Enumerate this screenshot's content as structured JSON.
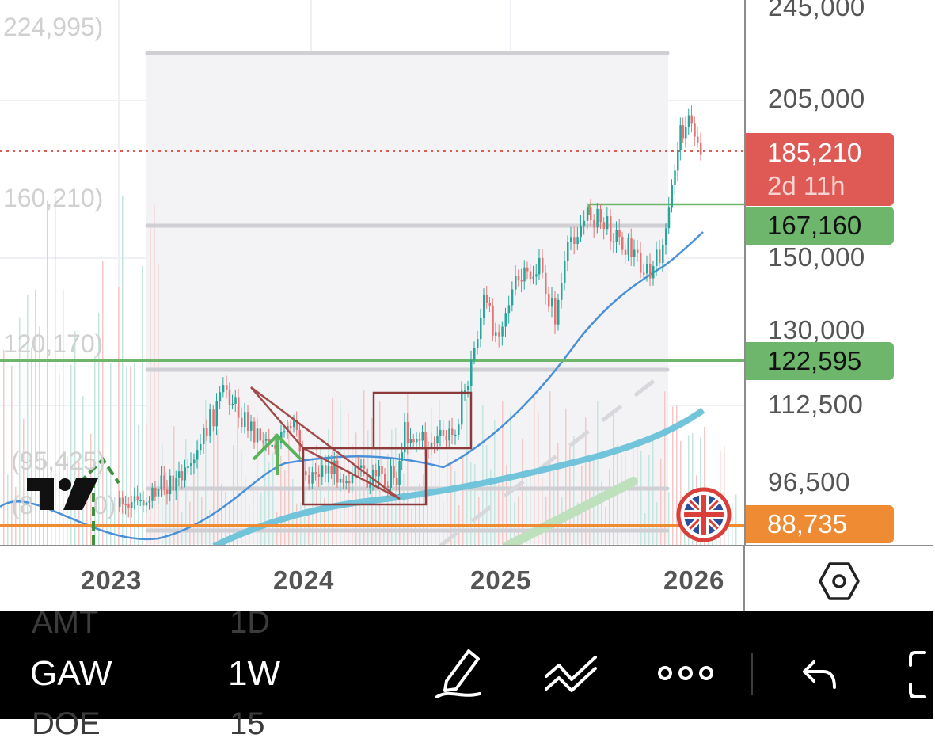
{
  "chart": {
    "left_watermark_values": [
      "224,995)",
      "160,210)",
      "120,170)",
      "(95,425)",
      "(8",
      "0)"
    ],
    "price_axis": {
      "ticks": [
        "245,000",
        "205,000",
        "150,000",
        "130,000",
        "112,500",
        "96,500"
      ],
      "current_price": {
        "value": "185,210",
        "countdown": "2d 11h",
        "color": "#e05a55"
      },
      "levels": [
        {
          "value": "167,160",
          "color": "#6db66c"
        },
        {
          "value": "122,595",
          "color": "#6db66c"
        },
        {
          "value": "88,735",
          "color": "#ee8b33"
        }
      ]
    },
    "time_axis": {
      "years": [
        "2023",
        "2024",
        "2025",
        "2026"
      ]
    },
    "flag_icon": "uk-flag-icon",
    "logo_icon": "tradingview-logo-icon"
  },
  "toolbar": {
    "symbol": "GAW",
    "interval": "1W",
    "ghost_top": {
      "symbol": "AMT",
      "interval": "1D"
    },
    "ghost_bottom": {
      "symbol": "DOE",
      "interval": "15"
    },
    "icons": [
      "pen-icon",
      "drawing-tools-icon",
      "more-icon",
      "undo-icon",
      "fullscreen-icon"
    ]
  }
}
